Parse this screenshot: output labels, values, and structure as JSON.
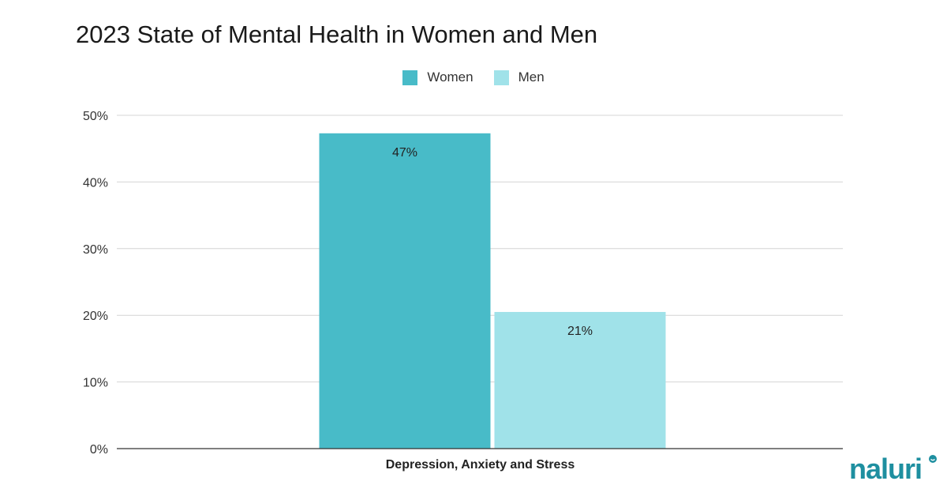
{
  "chart_data": {
    "type": "bar",
    "title": "2023 State of Mental Health in Women and Men",
    "categories": [
      "Depression, Anxiety and Stress"
    ],
    "series": [
      {
        "name": "Women",
        "values": [
          47.3
        ],
        "data_label": "47%",
        "color": "#48BBC8"
      },
      {
        "name": "Men",
        "values": [
          20.5
        ],
        "data_label": "21%",
        "color": "#A0E2E9"
      }
    ],
    "xlabel": "",
    "ylabel": "",
    "ylim": [
      0,
      50
    ],
    "yticks": [
      0,
      10,
      20,
      30,
      40,
      50
    ],
    "ytick_labels": [
      "0%",
      "10%",
      "20%",
      "30%",
      "40%",
      "50%"
    ],
    "legend_position": "top-center",
    "grid": true
  },
  "brand": {
    "logo_name": "naluri",
    "logo_color": "#1E8FA0"
  }
}
